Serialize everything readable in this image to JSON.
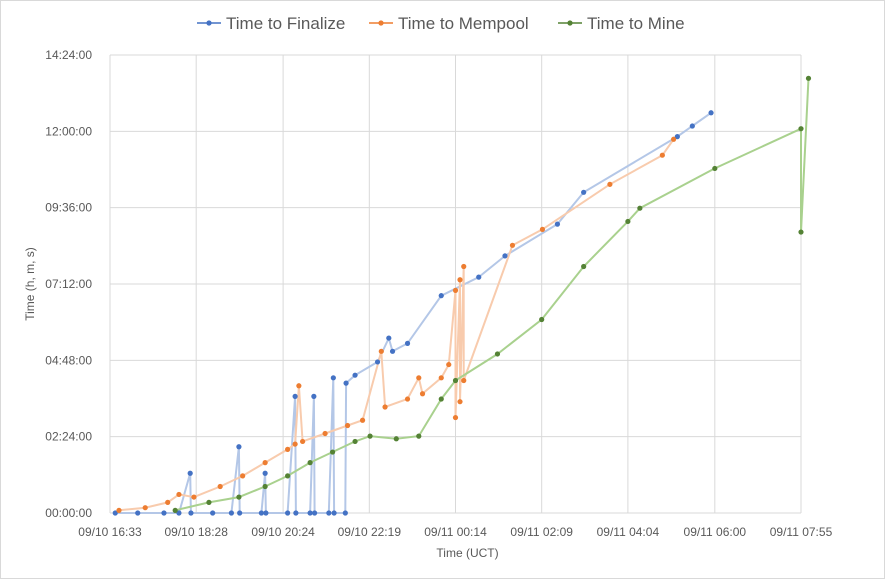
{
  "chart_data": {
    "type": "line",
    "title": "",
    "xlabel": "Time (UCT)",
    "ylabel": "Time (h, m, s)",
    "x_tick_labels": [
      "09/10 16:33",
      "09/10 18:28",
      "09/10 20:24",
      "09/10 22:19",
      "09/11 00:14",
      "09/11 02:09",
      "09/11 04:04",
      "09/11 06:00",
      "09/11 07:55"
    ],
    "x_ticks": [
      "2018-09-10 16:33",
      "2018-09-10 18:28",
      "2018-09-10 20:24",
      "2018-09-10 22:19",
      "2018-09-11 00:14",
      "2018-09-11 02:09",
      "2018-09-11 04:04",
      "2018-09-11 06:00",
      "2018-09-11 07:55"
    ],
    "xlim": [
      "2018-09-10 16:33",
      "2018-09-11 07:55"
    ],
    "y_tick_labels": [
      "00:00:00",
      "02:24:00",
      "04:48:00",
      "07:12:00",
      "09:36:00",
      "12:00:00",
      "14:24:00"
    ],
    "y_ticks": [
      "00:00:00",
      "02:24:00",
      "04:48:00",
      "07:12:00",
      "09:36:00",
      "12:00:00",
      "14:24:00"
    ],
    "ylim": [
      "00:00:00",
      "14:24:00"
    ],
    "grid": true,
    "legend_position": "top",
    "series": [
      {
        "name": "Time to Finalize",
        "color": "#4472c4",
        "line_color": "#b4c7e7",
        "points": [
          [
            "2018-09-10 16:40",
            "00:00:00"
          ],
          [
            "2018-09-10 17:10",
            "00:00:00"
          ],
          [
            "2018-09-10 17:45",
            "00:00:00"
          ],
          [
            "2018-09-10 18:05",
            "00:00:00"
          ],
          [
            "2018-09-10 18:20",
            "01:15:00"
          ],
          [
            "2018-09-10 18:21",
            "00:00:00"
          ],
          [
            "2018-09-10 18:50",
            "00:00:00"
          ],
          [
            "2018-09-10 19:15",
            "00:00:00"
          ],
          [
            "2018-09-10 19:25",
            "02:05:00"
          ],
          [
            "2018-09-10 19:26",
            "00:00:00"
          ],
          [
            "2018-09-10 19:55",
            "00:00:00"
          ],
          [
            "2018-09-10 20:00",
            "01:15:00"
          ],
          [
            "2018-09-10 20:01",
            "00:00:00"
          ],
          [
            "2018-09-10 20:30",
            "00:00:00"
          ],
          [
            "2018-09-10 20:40",
            "03:40:00"
          ],
          [
            "2018-09-10 20:41",
            "00:00:00"
          ],
          [
            "2018-09-10 21:00",
            "00:00:00"
          ],
          [
            "2018-09-10 21:05",
            "03:40:00"
          ],
          [
            "2018-09-10 21:06",
            "00:00:00"
          ],
          [
            "2018-09-10 21:25",
            "00:00:00"
          ],
          [
            "2018-09-10 21:31",
            "04:15:00"
          ],
          [
            "2018-09-10 21:32",
            "00:00:00"
          ],
          [
            "2018-09-10 21:47",
            "00:00:00"
          ],
          [
            "2018-09-10 21:48",
            "04:05:00"
          ],
          [
            "2018-09-10 22:00",
            "04:20:00"
          ],
          [
            "2018-09-10 22:30",
            "04:45:00"
          ],
          [
            "2018-09-10 22:45",
            "05:30:00"
          ],
          [
            "2018-09-10 22:50",
            "05:05:00"
          ],
          [
            "2018-09-10 23:10",
            "05:20:00"
          ],
          [
            "2018-09-10 23:55",
            "06:50:00"
          ],
          [
            "2018-09-11 00:45",
            "07:25:00"
          ],
          [
            "2018-09-11 01:20",
            "08:05:00"
          ],
          [
            "2018-09-11 02:30",
            "09:05:00"
          ],
          [
            "2018-09-11 03:05",
            "10:05:00"
          ],
          [
            "2018-09-11 05:10",
            "11:50:00"
          ],
          [
            "2018-09-11 05:30",
            "12:10:00"
          ],
          [
            "2018-09-11 05:55",
            "12:35:00"
          ]
        ]
      },
      {
        "name": "Time to Mempool",
        "color": "#ed7d31",
        "line_color": "#f8cbad",
        "points": [
          [
            "2018-09-10 16:45",
            "00:05:00"
          ],
          [
            "2018-09-10 17:20",
            "00:10:00"
          ],
          [
            "2018-09-10 17:50",
            "00:20:00"
          ],
          [
            "2018-09-10 18:05",
            "00:35:00"
          ],
          [
            "2018-09-10 18:25",
            "00:30:00"
          ],
          [
            "2018-09-10 19:00",
            "00:50:00"
          ],
          [
            "2018-09-10 19:30",
            "01:10:00"
          ],
          [
            "2018-09-10 20:00",
            "01:35:00"
          ],
          [
            "2018-09-10 20:30",
            "02:00:00"
          ],
          [
            "2018-09-10 20:40",
            "02:10:00"
          ],
          [
            "2018-09-10 20:45",
            "04:00:00"
          ],
          [
            "2018-09-10 20:50",
            "02:15:00"
          ],
          [
            "2018-09-10 21:20",
            "02:30:00"
          ],
          [
            "2018-09-10 21:50",
            "02:45:00"
          ],
          [
            "2018-09-10 22:10",
            "02:55:00"
          ],
          [
            "2018-09-10 22:35",
            "05:05:00"
          ],
          [
            "2018-09-10 22:40",
            "03:20:00"
          ],
          [
            "2018-09-10 23:10",
            "03:35:00"
          ],
          [
            "2018-09-10 23:25",
            "04:15:00"
          ],
          [
            "2018-09-10 23:30",
            "03:45:00"
          ],
          [
            "2018-09-10 23:55",
            "04:15:00"
          ],
          [
            "2018-09-11 00:05",
            "04:40:00"
          ],
          [
            "2018-09-11 00:14",
            "07:00:00"
          ],
          [
            "2018-09-11 00:14",
            "03:00:00"
          ],
          [
            "2018-09-11 00:20",
            "07:20:00"
          ],
          [
            "2018-09-11 00:20",
            "03:30:00"
          ],
          [
            "2018-09-11 00:25",
            "07:45:00"
          ],
          [
            "2018-09-11 00:25",
            "04:10:00"
          ],
          [
            "2018-09-11 01:30",
            "08:25:00"
          ],
          [
            "2018-09-11 02:10",
            "08:55:00"
          ],
          [
            "2018-09-11 03:40",
            "10:20:00"
          ],
          [
            "2018-09-11 04:50",
            "11:15:00"
          ],
          [
            "2018-09-11 05:05",
            "11:45:00"
          ]
        ]
      },
      {
        "name": "Time to Mine",
        "color": "#548235",
        "line_color": "#a9d18e",
        "points": [
          [
            "2018-09-10 18:00",
            "00:05:00"
          ],
          [
            "2018-09-10 18:45",
            "00:20:00"
          ],
          [
            "2018-09-10 19:25",
            "00:30:00"
          ],
          [
            "2018-09-10 20:00",
            "00:50:00"
          ],
          [
            "2018-09-10 20:30",
            "01:10:00"
          ],
          [
            "2018-09-10 21:00",
            "01:35:00"
          ],
          [
            "2018-09-10 21:30",
            "01:55:00"
          ],
          [
            "2018-09-10 22:00",
            "02:15:00"
          ],
          [
            "2018-09-10 22:20",
            "02:25:00"
          ],
          [
            "2018-09-10 22:55",
            "02:20:00"
          ],
          [
            "2018-09-10 23:25",
            "02:25:00"
          ],
          [
            "2018-09-10 23:55",
            "03:35:00"
          ],
          [
            "2018-09-11 00:14",
            "04:10:00"
          ],
          [
            "2018-09-11 01:10",
            "05:00:00"
          ],
          [
            "2018-09-11 02:09",
            "06:05:00"
          ],
          [
            "2018-09-11 03:05",
            "07:45:00"
          ],
          [
            "2018-09-11 04:04",
            "09:10:00"
          ],
          [
            "2018-09-11 04:20",
            "09:35:00"
          ],
          [
            "2018-09-11 06:00",
            "10:50:00"
          ],
          [
            "2018-09-11 07:55",
            "12:05:00"
          ],
          [
            "2018-09-11 07:55",
            "08:50:00"
          ],
          [
            "2018-09-11 08:05",
            "13:40:00"
          ]
        ]
      }
    ]
  }
}
